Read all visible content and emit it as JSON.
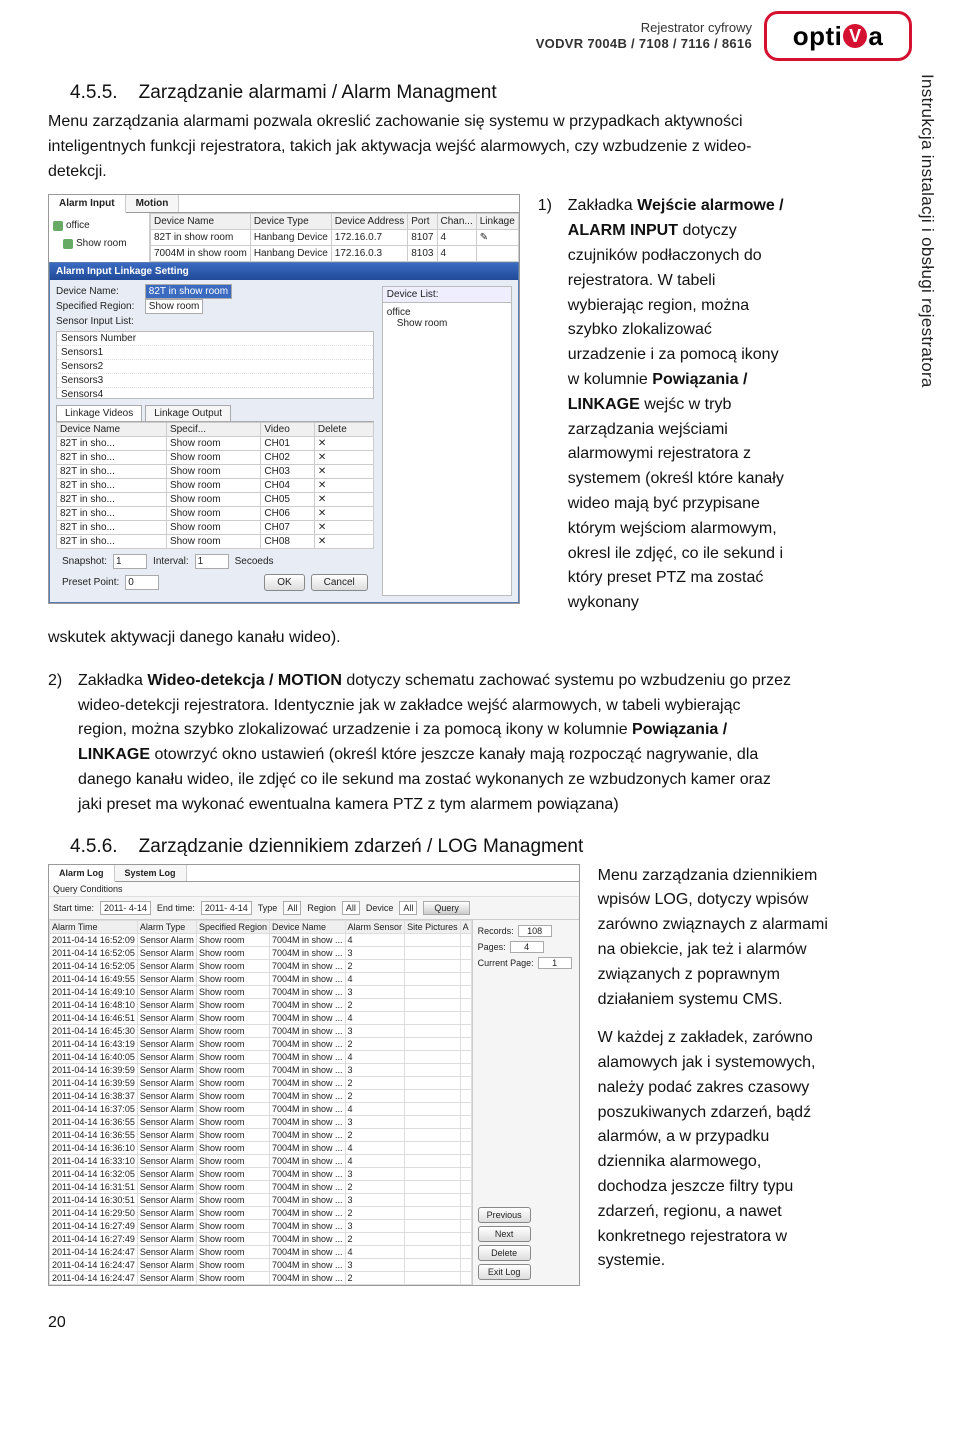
{
  "header": {
    "brand_line1": "Rejestrator cyfrowy",
    "brand_line2": "VODVR 7004B / 7108 / 7116 / 8616",
    "logo_text_pre": "opti",
    "logo_text_mid": "V",
    "logo_text_post": "a"
  },
  "side_vertical": "Instrukcja instalacji i obsługi\nrejestratora",
  "section1": {
    "num": "4.5.5.",
    "title": "Zarządzanie alarmami / Alarm Managment",
    "intro": "Menu zarządzania alarmami pozwala okreslić zachowanie się systemu w przypadkach aktywności inteligentnych funkcji rejestratora, takich jak aktywacja wejść alarmowych, czy wzbudzenie z wideo-detekcji.",
    "item1_num": "1)",
    "item1_pre": "Zakładka ",
    "item1_bold": "Wejście alarmowe / ALARM INPUT",
    "item1_post": " dotyczy czujników podłaczonych do rejestratora. W tabeli wybierając region, można szybko zlokalizować urzadzenie i za pomocą ikony w kolumnie ",
    "item1_bold2": "Powiązania / LINKAGE",
    "item1_post2": " wejśc w tryb zarządzania wejściami alarmowymi rejestratora z systemem (określ które kanały wideo mają być przypisane którym wejściom alarmowym, okresl ile zdjęć, co ile sekund i który preset PTZ ma zostać wykonany",
    "cont_line": "wskutek aktywacji danego kanału wideo).",
    "item2_num": "2)",
    "item2_pre": "Zakładka ",
    "item2_bold": "Wideo-detekcja / MOTION",
    "item2_post": " dotyczy schematu zachować systemu po wzbudzeniu go przez wideo-detekcji rejestratora. Identycznie jak w zakładce wejść alarmowych, w tabeli wybierając region, można szybko zlokalizować urzadzenie i za pomocą ikony w kolumnie ",
    "item2_bold2": "Powiązania / LINKAGE",
    "item2_post2": " otowrzyć okno ustawień (określ które jeszcze kanały mają rozpocząć nagrywanie, dla danego kanału wideo, ile zdjęć co ile sekund ma zostać wykonanych ze wzbudzonych kamer oraz jaki preset ma wykonać ewentualna kamera PTZ z tym alarmem powiązana)"
  },
  "section2": {
    "num": "4.5.6.",
    "title": "Zarządzanie dziennikiem zdarzeń / LOG Managment",
    "para1": "Menu zarządzania dziennikiem wpisów LOG, dotyczy wpisów zarówno związnaych z alarmami na obiekcie, jak też i alarmów związanych z poprawnym działaniem systemu CMS.",
    "para2": "W każdej z zakładek, zarówno alamowych jak i systemowych, należy podać zakres czasowy poszukiwanych zdarzeń, bądź alarmów, a w przypadku dziennika alarmowego, dochodza jeszcze filtry typu zdarzeń, regionu, a nawet konkretnego rejestratora w systemie."
  },
  "shotA": {
    "tabs": [
      "Alarm Input",
      "Motion"
    ],
    "tree_root": "office",
    "tree_child": "Show room",
    "devcols": [
      "Device Name",
      "Device Type",
      "Device Address",
      "Port",
      "Chan...",
      "Linkage"
    ],
    "devrows": [
      [
        "82T in show room",
        "Hanbang Device",
        "172.16.0.7",
        "8107",
        "4",
        "✎"
      ],
      [
        "7004M in show room",
        "Hanbang Device",
        "172.16.0.3",
        "8103",
        "4",
        ""
      ]
    ],
    "dlg_title": "Alarm Input Linkage Setting",
    "lbl_device_name": "Device Name:",
    "val_device_name": "82T in show room",
    "lbl_region": "Specified Region:",
    "val_region": "Show room",
    "lbl_sensor": "Sensor Input List:",
    "sensors": [
      "Sensors Number",
      "Sensors1",
      "Sensors2",
      "Sensors3",
      "Sensors4"
    ],
    "devicelist_label": "Device List:",
    "devicelist_items": [
      "office",
      "Show room"
    ],
    "linktabs": [
      "Linkage Videos",
      "Linkage Output"
    ],
    "linkcols": [
      "Device Name",
      "Specif...",
      "Video",
      "Delete"
    ],
    "linkrows": [
      [
        "82T in sho...",
        "Show room",
        "CH01",
        "✕"
      ],
      [
        "82T in sho...",
        "Show room",
        "CH02",
        "✕"
      ],
      [
        "82T in sho...",
        "Show room",
        "CH03",
        "✕"
      ],
      [
        "82T in sho...",
        "Show room",
        "CH04",
        "✕"
      ],
      [
        "82T in sho...",
        "Show room",
        "CH05",
        "✕"
      ],
      [
        "82T in sho...",
        "Show room",
        "CH06",
        "✕"
      ],
      [
        "82T in sho...",
        "Show room",
        "CH07",
        "✕"
      ],
      [
        "82T in sho...",
        "Show room",
        "CH08",
        "✕"
      ]
    ],
    "lbl_snapshot": "Snapshot:",
    "val_snapshot": "1",
    "lbl_interval": "Interval:",
    "val_interval": "1",
    "lbl_seconds": "Secoeds",
    "lbl_preset": "Preset Point:",
    "val_preset": "0",
    "btn_ok": "OK",
    "btn_cancel": "Cancel"
  },
  "shotB": {
    "tabs": [
      "Alarm Log",
      "System Log"
    ],
    "query_label": "Query Conditions",
    "start_lbl": "Start time:",
    "start_val": "2011- 4-14",
    "end_lbl": "End time:",
    "end_val": "2011- 4-14",
    "type_lbl": "Type",
    "type_val": "All",
    "region_lbl": "Region",
    "region_val": "All",
    "device_lbl": "Device",
    "device_val": "All",
    "btn_query": "Query",
    "cols": [
      "Alarm Time",
      "Alarm Type",
      "Specified Region",
      "Device Name",
      "Alarm Sensor",
      "Site Pictures",
      "A"
    ],
    "rows": [
      [
        "2011-04-14 16:52:09",
        "Sensor Alarm",
        "Show room",
        "7004M in show ...",
        "4",
        "",
        ""
      ],
      [
        "2011-04-14 16:52:05",
        "Sensor Alarm",
        "Show room",
        "7004M in show ...",
        "3",
        "",
        ""
      ],
      [
        "2011-04-14 16:52:05",
        "Sensor Alarm",
        "Show room",
        "7004M in show ...",
        "2",
        "",
        ""
      ],
      [
        "2011-04-14 16:49:55",
        "Sensor Alarm",
        "Show room",
        "7004M in show ...",
        "4",
        "",
        ""
      ],
      [
        "2011-04-14 16:49:10",
        "Sensor Alarm",
        "Show room",
        "7004M in show ...",
        "3",
        "",
        ""
      ],
      [
        "2011-04-14 16:48:10",
        "Sensor Alarm",
        "Show room",
        "7004M in show ...",
        "2",
        "",
        ""
      ],
      [
        "2011-04-14 16:46:51",
        "Sensor Alarm",
        "Show room",
        "7004M in show ...",
        "4",
        "",
        ""
      ],
      [
        "2011-04-14 16:45:30",
        "Sensor Alarm",
        "Show room",
        "7004M in show ...",
        "3",
        "",
        ""
      ],
      [
        "2011-04-14 16:43:19",
        "Sensor Alarm",
        "Show room",
        "7004M in show ...",
        "2",
        "",
        ""
      ],
      [
        "2011-04-14 16:40:05",
        "Sensor Alarm",
        "Show room",
        "7004M in show ...",
        "4",
        "",
        ""
      ],
      [
        "2011-04-14 16:39:59",
        "Sensor Alarm",
        "Show room",
        "7004M in show ...",
        "3",
        "",
        ""
      ],
      [
        "2011-04-14 16:39:59",
        "Sensor Alarm",
        "Show room",
        "7004M in show ...",
        "2",
        "",
        ""
      ],
      [
        "2011-04-14 16:38:37",
        "Sensor Alarm",
        "Show room",
        "7004M in show ...",
        "2",
        "",
        ""
      ],
      [
        "2011-04-14 16:37:05",
        "Sensor Alarm",
        "Show room",
        "7004M in show ...",
        "4",
        "",
        ""
      ],
      [
        "2011-04-14 16:36:55",
        "Sensor Alarm",
        "Show room",
        "7004M in show ...",
        "3",
        "",
        ""
      ],
      [
        "2011-04-14 16:36:55",
        "Sensor Alarm",
        "Show room",
        "7004M in show ...",
        "2",
        "",
        ""
      ],
      [
        "2011-04-14 16:36:10",
        "Sensor Alarm",
        "Show room",
        "7004M in show ...",
        "4",
        "",
        ""
      ],
      [
        "2011-04-14 16:33:10",
        "Sensor Alarm",
        "Show room",
        "7004M in show ...",
        "4",
        "",
        ""
      ],
      [
        "2011-04-14 16:32:05",
        "Sensor Alarm",
        "Show room",
        "7004M in show ...",
        "3",
        "",
        ""
      ],
      [
        "2011-04-14 16:31:51",
        "Sensor Alarm",
        "Show room",
        "7004M in show ...",
        "2",
        "",
        ""
      ],
      [
        "2011-04-14 16:30:51",
        "Sensor Alarm",
        "Show room",
        "7004M in show ...",
        "3",
        "",
        ""
      ],
      [
        "2011-04-14 16:29:50",
        "Sensor Alarm",
        "Show room",
        "7004M in show ...",
        "2",
        "",
        ""
      ],
      [
        "2011-04-14 16:27:49",
        "Sensor Alarm",
        "Show room",
        "7004M in show ...",
        "3",
        "",
        ""
      ],
      [
        "2011-04-14 16:27:49",
        "Sensor Alarm",
        "Show room",
        "7004M in show ...",
        "2",
        "",
        ""
      ],
      [
        "2011-04-14 16:24:47",
        "Sensor Alarm",
        "Show room",
        "7004M in show ...",
        "4",
        "",
        ""
      ],
      [
        "2011-04-14 16:24:47",
        "Sensor Alarm",
        "Show room",
        "7004M in show ...",
        "3",
        "",
        ""
      ],
      [
        "2011-04-14 16:24:47",
        "Sensor Alarm",
        "Show room",
        "7004M in show ...",
        "2",
        "",
        ""
      ]
    ],
    "records_lbl": "Records:",
    "records_val": "108",
    "pages_lbl": "Pages:",
    "pages_val": "4",
    "curpage_lbl": "Current Page:",
    "curpage_val": "1",
    "btns": [
      "Previous",
      "Next",
      "Delete",
      "Exit Log"
    ]
  },
  "page_number": "20"
}
